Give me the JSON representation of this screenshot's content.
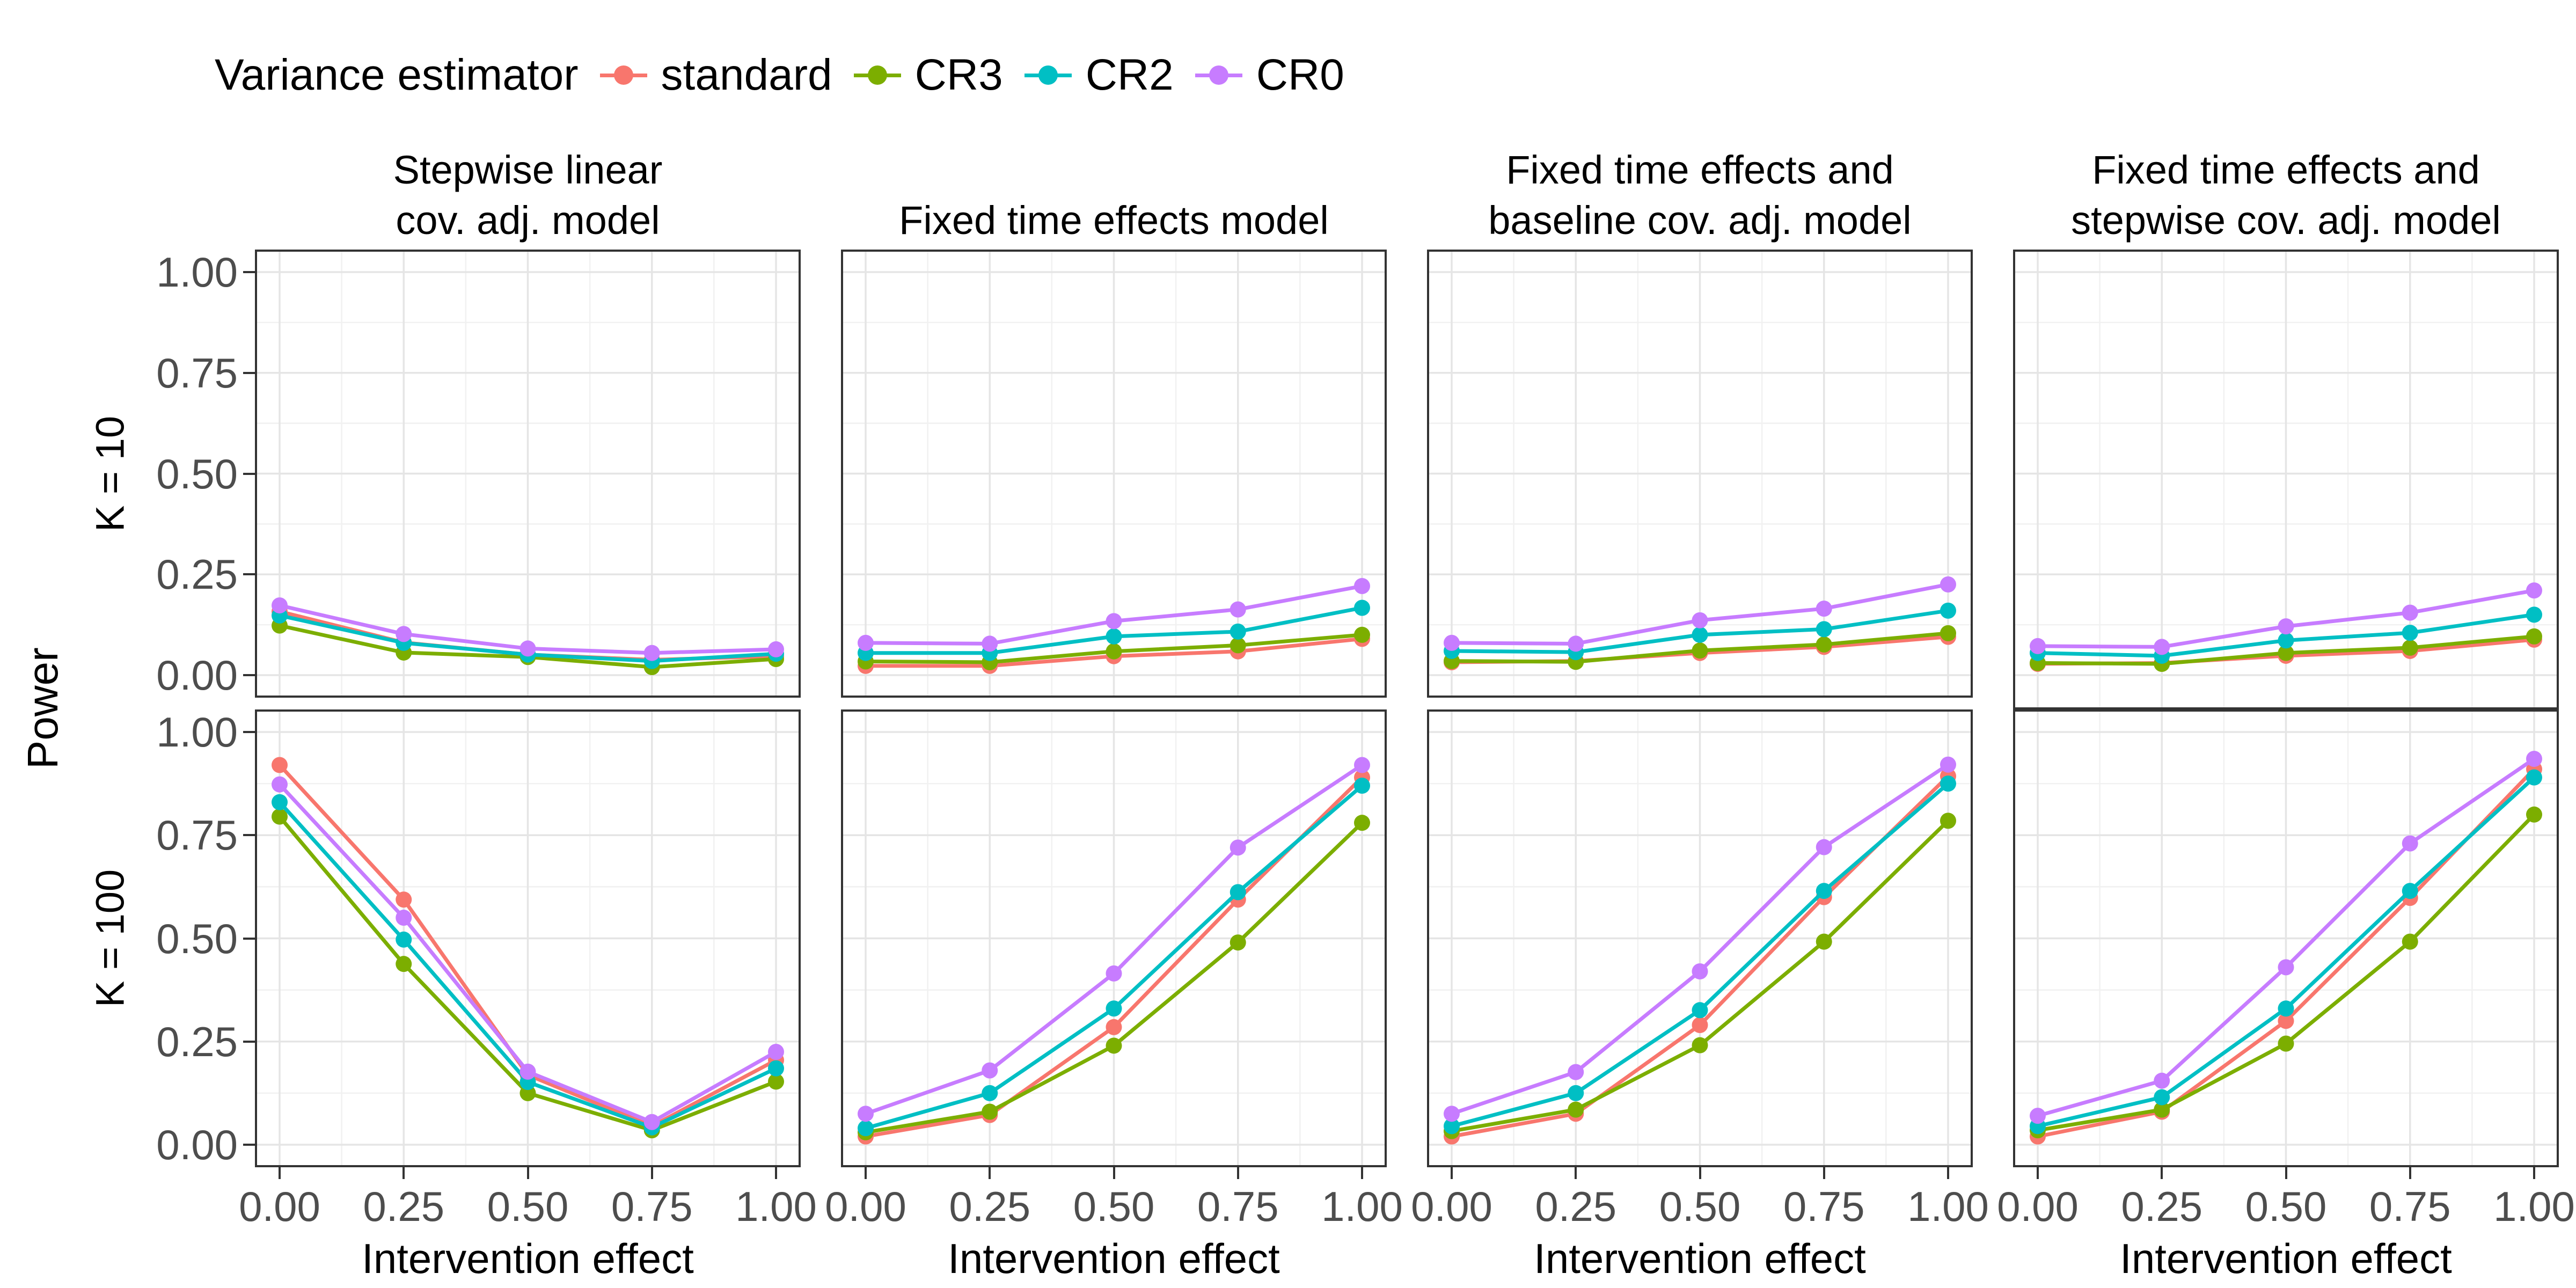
{
  "legend": {
    "title": "Variance estimator",
    "items": [
      {
        "label": "standard",
        "color": "#F8766D"
      },
      {
        "label": "CR3",
        "color": "#7CAE00"
      },
      {
        "label": "CR2",
        "color": "#00BFC4"
      },
      {
        "label": "CR0",
        "color": "#C77CFF"
      }
    ]
  },
  "style": {
    "grid_major_color": "#E5E5E5",
    "grid_minor_color": "#F1F1F1",
    "panel_border_color": "#333333",
    "tick_label_color": "#4D4D4D",
    "background": "#FFFFFF"
  },
  "chart_data": {
    "type": "line",
    "x": [
      0,
      0.25,
      0.5,
      0.75,
      1
    ],
    "x_ticks": [
      "0.00",
      "0.25",
      "0.50",
      "0.75",
      "1.00"
    ],
    "y_ticks": [
      "0.00",
      "0.25",
      "0.50",
      "0.75",
      "1.00"
    ],
    "y_tick_values": [
      0,
      0.25,
      0.5,
      0.75,
      1
    ],
    "xlabel": "Intervention effect",
    "ylabel": "Power",
    "ylim": [
      0,
      1
    ],
    "grid": "major+minor",
    "legend_position": "top-left",
    "col_facets": [
      "Stepwise linear\ncov. adj. model",
      "Fixed time effects model",
      "Fixed time effects and\nbaseline cov. adj. model",
      "Fixed time effects and\nstepwise cov. adj. model"
    ],
    "row_facets": [
      "K = 10",
      "K = 100"
    ],
    "panels": [
      {
        "row": "K = 10",
        "col": "Stepwise linear cov. adj. model",
        "row_index": 0,
        "col_index": 0,
        "series": [
          {
            "name": "standard",
            "values": [
              0.158,
              0.081,
              0.051,
              0.038,
              0.047
            ]
          },
          {
            "name": "CR3",
            "values": [
              0.123,
              0.056,
              0.045,
              0.02,
              0.04
            ]
          },
          {
            "name": "CR2",
            "values": [
              0.148,
              0.08,
              0.051,
              0.035,
              0.053
            ]
          },
          {
            "name": "CR0",
            "values": [
              0.173,
              0.102,
              0.066,
              0.055,
              0.064
            ]
          }
        ]
      },
      {
        "row": "K = 10",
        "col": "Fixed time effects model",
        "row_index": 0,
        "col_index": 1,
        "series": [
          {
            "name": "standard",
            "values": [
              0.023,
              0.023,
              0.047,
              0.059,
              0.09
            ]
          },
          {
            "name": "CR3",
            "values": [
              0.034,
              0.032,
              0.059,
              0.074,
              0.1
            ]
          },
          {
            "name": "CR2",
            "values": [
              0.055,
              0.055,
              0.096,
              0.108,
              0.167
            ]
          },
          {
            "name": "CR0",
            "values": [
              0.08,
              0.078,
              0.134,
              0.163,
              0.221
            ]
          }
        ]
      },
      {
        "row": "K = 10",
        "col": "Fixed time effects and baseline cov. adj. model",
        "row_index": 0,
        "col_index": 2,
        "series": [
          {
            "name": "standard",
            "values": [
              0.032,
              0.035,
              0.055,
              0.07,
              0.095
            ]
          },
          {
            "name": "CR3",
            "values": [
              0.035,
              0.033,
              0.061,
              0.076,
              0.104
            ]
          },
          {
            "name": "CR2",
            "values": [
              0.06,
              0.057,
              0.1,
              0.114,
              0.16
            ]
          },
          {
            "name": "CR0",
            "values": [
              0.08,
              0.078,
              0.136,
              0.165,
              0.225
            ]
          }
        ]
      },
      {
        "row": "K = 10",
        "col": "Fixed time effects and stepwise cov. adj. model",
        "row_index": 0,
        "col_index": 3,
        "series": [
          {
            "name": "standard",
            "values": [
              0.028,
              0.03,
              0.048,
              0.06,
              0.088
            ]
          },
          {
            "name": "CR3",
            "values": [
              0.03,
              0.028,
              0.055,
              0.068,
              0.096
            ]
          },
          {
            "name": "CR2",
            "values": [
              0.055,
              0.048,
              0.086,
              0.105,
              0.15
            ]
          },
          {
            "name": "CR0",
            "values": [
              0.072,
              0.07,
              0.121,
              0.155,
              0.21
            ]
          }
        ]
      },
      {
        "row": "K = 100",
        "col": "Stepwise linear cov. adj. model",
        "row_index": 1,
        "col_index": 0,
        "series": [
          {
            "name": "standard",
            "values": [
              0.92,
              0.594,
              0.169,
              0.045,
              0.205
            ]
          },
          {
            "name": "CR3",
            "values": [
              0.795,
              0.438,
              0.125,
              0.035,
              0.153
            ]
          },
          {
            "name": "CR2",
            "values": [
              0.83,
              0.497,
              0.152,
              0.042,
              0.185
            ]
          },
          {
            "name": "CR0",
            "values": [
              0.873,
              0.55,
              0.177,
              0.055,
              0.225
            ]
          }
        ]
      },
      {
        "row": "K = 100",
        "col": "Fixed time effects model",
        "row_index": 1,
        "col_index": 1,
        "series": [
          {
            "name": "standard",
            "values": [
              0.02,
              0.072,
              0.285,
              0.594,
              0.89
            ]
          },
          {
            "name": "CR3",
            "values": [
              0.03,
              0.08,
              0.24,
              0.49,
              0.78
            ]
          },
          {
            "name": "CR2",
            "values": [
              0.04,
              0.125,
              0.33,
              0.612,
              0.87
            ]
          },
          {
            "name": "CR0",
            "values": [
              0.075,
              0.18,
              0.415,
              0.72,
              0.92
            ]
          }
        ]
      },
      {
        "row": "K = 100",
        "col": "Fixed time effects and baseline cov. adj. model",
        "row_index": 1,
        "col_index": 2,
        "series": [
          {
            "name": "standard",
            "values": [
              0.02,
              0.075,
              0.29,
              0.6,
              0.893
            ]
          },
          {
            "name": "CR3",
            "values": [
              0.033,
              0.085,
              0.241,
              0.492,
              0.785
            ]
          },
          {
            "name": "CR2",
            "values": [
              0.045,
              0.125,
              0.326,
              0.615,
              0.875
            ]
          },
          {
            "name": "CR0",
            "values": [
              0.075,
              0.176,
              0.42,
              0.721,
              0.921
            ]
          }
        ]
      },
      {
        "row": "K = 100",
        "col": "Fixed time effects and stepwise cov. adj. model",
        "row_index": 1,
        "col_index": 3,
        "series": [
          {
            "name": "standard",
            "values": [
              0.02,
              0.08,
              0.3,
              0.598,
              0.91
            ]
          },
          {
            "name": "CR3",
            "values": [
              0.035,
              0.085,
              0.245,
              0.492,
              0.8
            ]
          },
          {
            "name": "CR2",
            "values": [
              0.045,
              0.115,
              0.33,
              0.615,
              0.89
            ]
          },
          {
            "name": "CR0",
            "values": [
              0.07,
              0.155,
              0.43,
              0.73,
              0.935
            ]
          }
        ]
      }
    ]
  }
}
